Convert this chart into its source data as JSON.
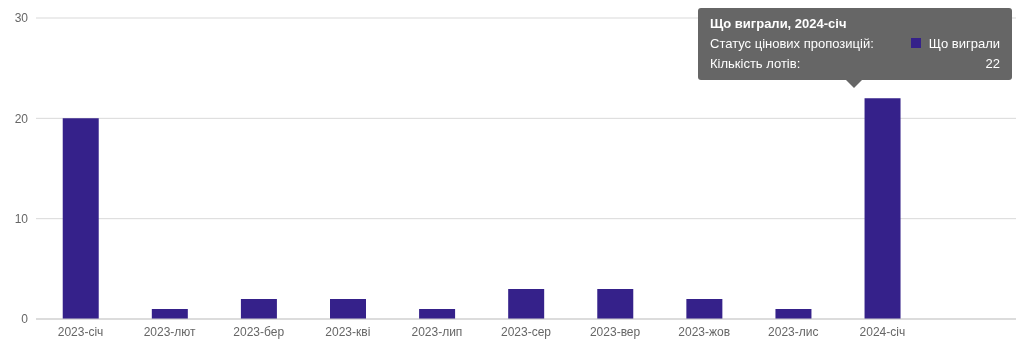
{
  "chart_data": {
    "type": "bar",
    "categories": [
      "2023-січ",
      "2023-лют",
      "2023-бер",
      "2023-кві",
      "2023-лип",
      "2023-сер",
      "2023-вер",
      "2023-жов",
      "2023-лис",
      "2024-січ"
    ],
    "values": [
      20,
      1,
      2,
      2,
      1,
      3,
      3,
      2,
      1,
      22
    ],
    "color": "#35218a",
    "ylim": [
      0,
      30
    ],
    "yticks": [
      0,
      10,
      20,
      30
    ],
    "grid": "y",
    "annotations": [
      "Що виграли, 2024-січ",
      "Статус цінових пропозицій:",
      "Що виграли",
      "Кількість лотів:",
      "22"
    ]
  }
}
